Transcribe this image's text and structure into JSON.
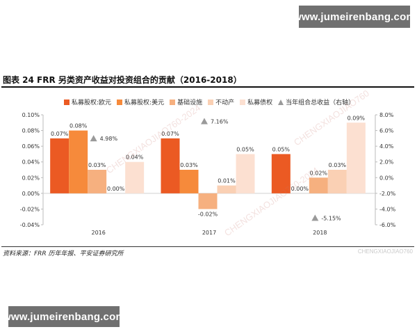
{
  "watermark": {
    "site_top": "www.jumeirenbang.com",
    "site_bottom": "www.jumeirenbang.com",
    "corner": "CHENGXIAOJIAO760",
    "diagonal": "CHENGXIAOJIAO760-2024"
  },
  "figure": {
    "title": "图表 24  FRR 另类资产收益对投资组合的贡献（2016-2018）",
    "source": "资料来源：FRR 历年年报、平安证券研究所"
  },
  "colors": {
    "series": [
      "#EB5A23",
      "#F68A3B",
      "#F6B07F",
      "#FAD0B4",
      "#FCE0D1"
    ],
    "marker": "#9A9A9A",
    "axis": "#bbbbbb",
    "label": "#333333"
  },
  "chart_data": {
    "type": "bar",
    "title": "",
    "categories": [
      "2016",
      "2017",
      "2018"
    ],
    "series": [
      {
        "name": "私募股权:欧元",
        "values": [
          0.07,
          0.07,
          0.05
        ],
        "labels": [
          "0.07%",
          "0.07%",
          "0.05%"
        ]
      },
      {
        "name": "私募股权:美元",
        "values": [
          0.08,
          0.03,
          0.0
        ],
        "labels": [
          "0.08%",
          "0.03%",
          "0.00%"
        ]
      },
      {
        "name": "基础设施",
        "values": [
          0.03,
          -0.02,
          0.02
        ],
        "labels": [
          "0.03%",
          "-0.02%",
          "0.02%"
        ]
      },
      {
        "name": "不动产",
        "values": [
          0.0,
          0.01,
          0.03
        ],
        "labels": [
          "0.00%",
          "0.01%",
          "0.03%"
        ]
      },
      {
        "name": "私募债权",
        "values": [
          0.04,
          0.05,
          0.09
        ],
        "labels": [
          "0.04%",
          "0.05%",
          "0.09%"
        ]
      }
    ],
    "secondary": {
      "name": "当年组合总收益（右轴）",
      "values": [
        4.98,
        7.16,
        -5.15
      ],
      "labels": [
        "4.98%",
        "7.16%",
        "-5.15%"
      ]
    },
    "ylim": [
      -0.04,
      0.1
    ],
    "y_ticks": [
      "-0.04%",
      "-0.02%",
      "0.00%",
      "0.02%",
      "0.04%",
      "0.06%",
      "0.08%",
      "0.10%"
    ],
    "y2lim": [
      -6.0,
      8.0
    ],
    "y2_ticks": [
      "-6.0%",
      "-4.0%",
      "-2.0%",
      "0.0%",
      "2.0%",
      "4.0%",
      "6.0%",
      "8.0%"
    ],
    "legend_position": "top",
    "grid": false
  }
}
